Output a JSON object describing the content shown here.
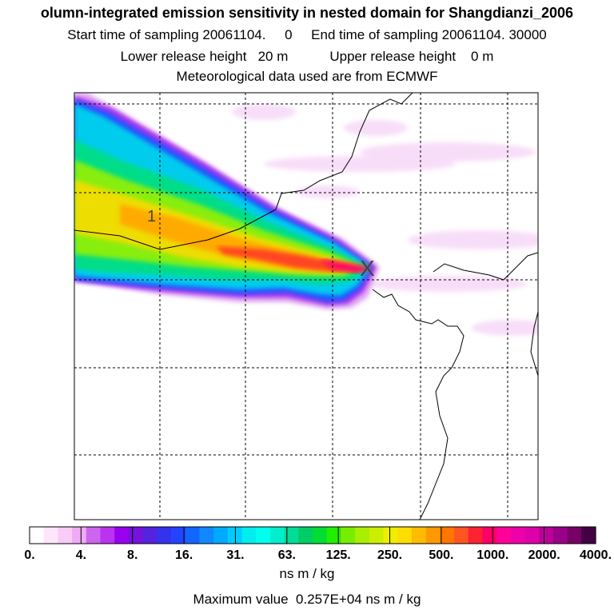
{
  "header": {
    "title": "olumn-integrated emission sensitivity in nested domain for Shangdianzi_2006",
    "line2": "Start time of sampling 20061104.     0     End time of sampling 20061104. 30000",
    "line3": "Lower release height   20 m           Upper release height    0 m",
    "line4": "Meteorological data used are from ECMWF"
  },
  "chart_data": {
    "type": "heatmap",
    "title": "olumn-integrated emission sensitivity in nested domain for Shangdianzi_2006",
    "plume_label": "1",
    "release_marker": "X",
    "colorbar": {
      "unit": "ns m / kg",
      "tick_labels": [
        "0.",
        "4.",
        "8.",
        "16.",
        "31.",
        "63.",
        "125.",
        "250.",
        "500.",
        "1000.",
        "2000.",
        "4000."
      ],
      "colors": [
        "#ffffff",
        "#fde6fb",
        "#f8ccf6",
        "#eeaaf3",
        "#cc66ee",
        "#bb33ee",
        "#9900ee",
        "#7711dd",
        "#5522dd",
        "#3333ee",
        "#2244ff",
        "#1166ff",
        "#1188ff",
        "#00aaff",
        "#00ccff",
        "#00eeee",
        "#00ffee",
        "#00eecc",
        "#00dd99",
        "#00cc66",
        "#00dd33",
        "#22ee00",
        "#77ee00",
        "#aaee00",
        "#ccee00",
        "#eeee00",
        "#ffdd00",
        "#ffbb00",
        "#ff9900",
        "#ff7700",
        "#ff5522",
        "#ff2233",
        "#ff0066",
        "#ff0099",
        "#ee00aa",
        "#dd00aa",
        "#bb0099",
        "#990088",
        "#770066",
        "#440044"
      ]
    },
    "max_value_text": "Maximum value  0.257E+04 ns m / kg",
    "grid": true
  }
}
